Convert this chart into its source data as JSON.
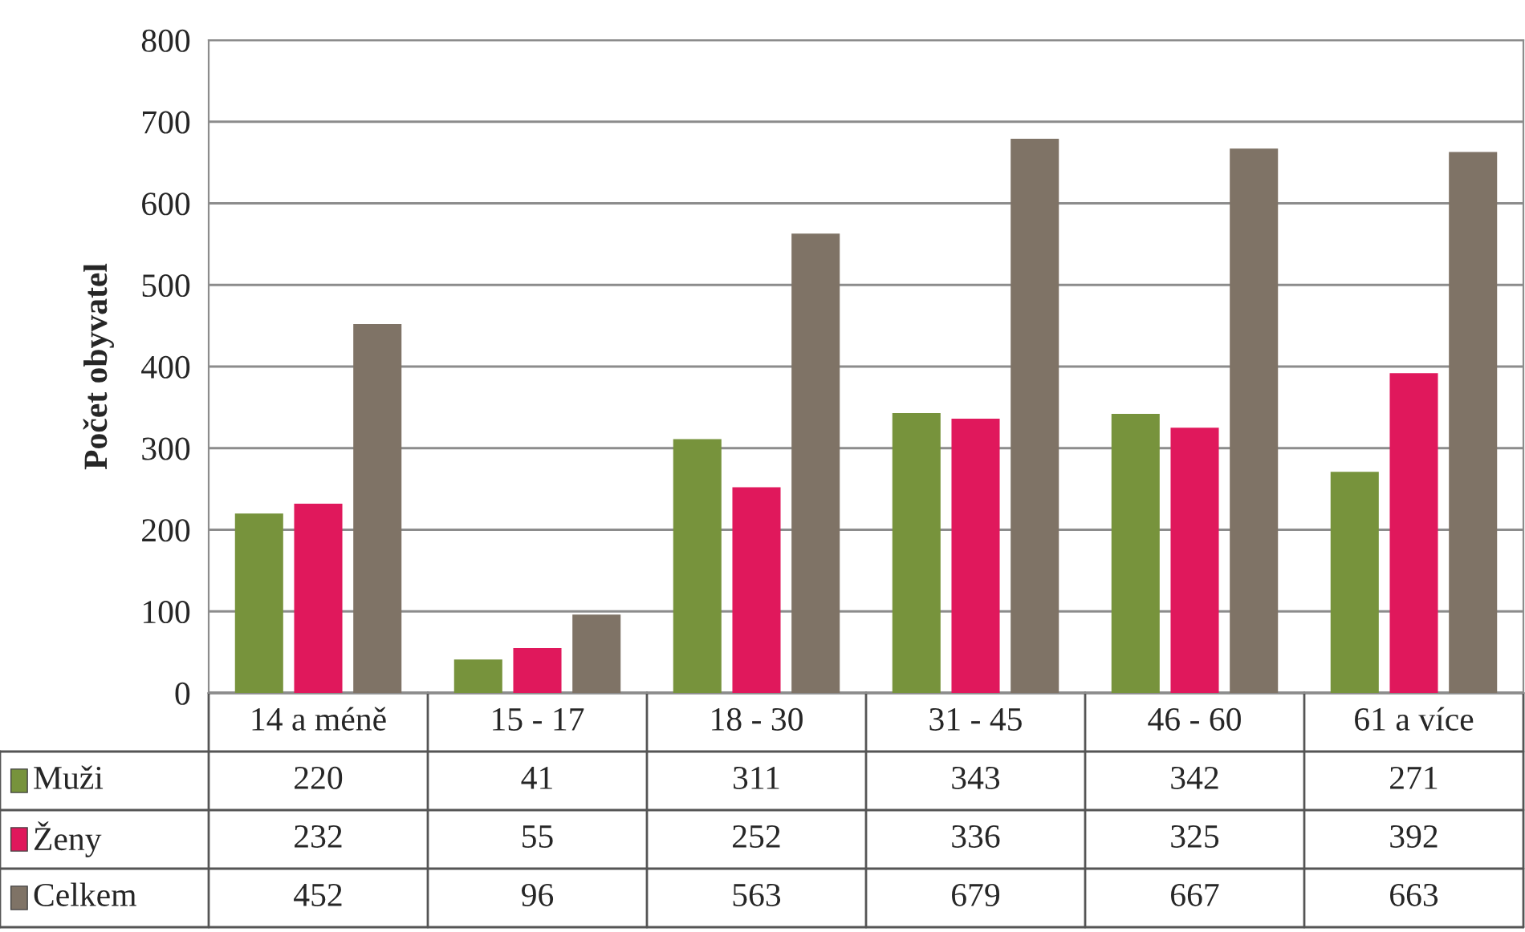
{
  "chart_data": {
    "type": "bar",
    "ylabel": "Počet obyvatel",
    "categories": [
      "14 a méně",
      "15 - 17",
      "18 - 30",
      "31 - 45",
      "46 - 60",
      "61 a více"
    ],
    "series": [
      {
        "name": "Muži",
        "color": "#77933c",
        "values": [
          220,
          41,
          311,
          343,
          342,
          271
        ]
      },
      {
        "name": "Ženy",
        "color": "#e0185c",
        "values": [
          232,
          55,
          252,
          336,
          325,
          392
        ]
      },
      {
        "name": "Celkem",
        "color": "#7f7366",
        "values": [
          452,
          96,
          563,
          679,
          667,
          663
        ]
      }
    ],
    "ylim": [
      0,
      800
    ],
    "yticks": [
      0,
      100,
      200,
      300,
      400,
      500,
      600,
      700,
      800
    ],
    "grid": "y",
    "data_labels": true,
    "legend": "bottom"
  }
}
